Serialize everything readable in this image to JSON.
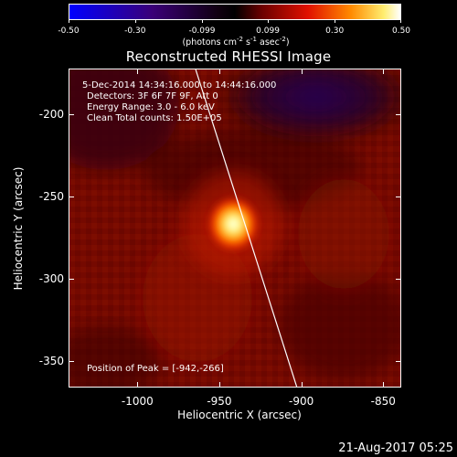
{
  "colorbar": {
    "ticks": [
      "-0.50",
      "-0.30",
      "-0.099",
      "0.099",
      "0.30",
      "0.50"
    ],
    "tick_values": [
      -0.5,
      -0.3,
      -0.099,
      0.099,
      0.3,
      0.5
    ],
    "range": [
      -0.5,
      0.5
    ],
    "units_prefix": "(photons cm",
    "units_exp1": "-2",
    "units_mid1": " s",
    "units_exp2": "-1",
    "units_mid2": " asec",
    "units_exp3": "-2",
    "units_suffix": ")"
  },
  "title": "Reconstructed RHESSI Image",
  "info": {
    "time_range": "5-Dec-2014 14:34:16.000 to 14:44:16.000",
    "detectors": "Detectors: 3F 6F 7F 9F, Att 0",
    "energy_range": "Energy Range: 3.0 - 6.0 keV",
    "clean_line": "Clean     Total counts: 1.50E+05",
    "peak_position": "Position of Peak = [-942,-266]"
  },
  "axes": {
    "x_label": "Heliocentric X (arcsec)",
    "y_label": "Heliocentric Y (arcsec)",
    "x_ticks": [
      "-1000",
      "-950",
      "-900",
      "-850"
    ],
    "x_tick_values": [
      -1000,
      -950,
      -900,
      -850
    ],
    "y_ticks": [
      "-200",
      "-250",
      "-300",
      "-350"
    ],
    "y_tick_values": [
      -200,
      -250,
      -300,
      -350
    ],
    "xlim": [
      -1042,
      -839
    ],
    "ylim": [
      -366,
      -172
    ]
  },
  "peak": {
    "x": -942,
    "y": -266
  },
  "limb_line": {
    "from": [
      -965,
      -172
    ],
    "to": [
      -903,
      -366
    ],
    "color": "#ffffff"
  },
  "timestamp": "21-Aug-2017 05:25",
  "colors": {
    "background": "#000000",
    "foreground": "#ffffff",
    "colormap": [
      "#000000",
      "#0000ff",
      "#3a0070",
      "#000000",
      "#8b0000",
      "#ff2000",
      "#ff9000",
      "#ffff60",
      "#ffffff"
    ]
  }
}
